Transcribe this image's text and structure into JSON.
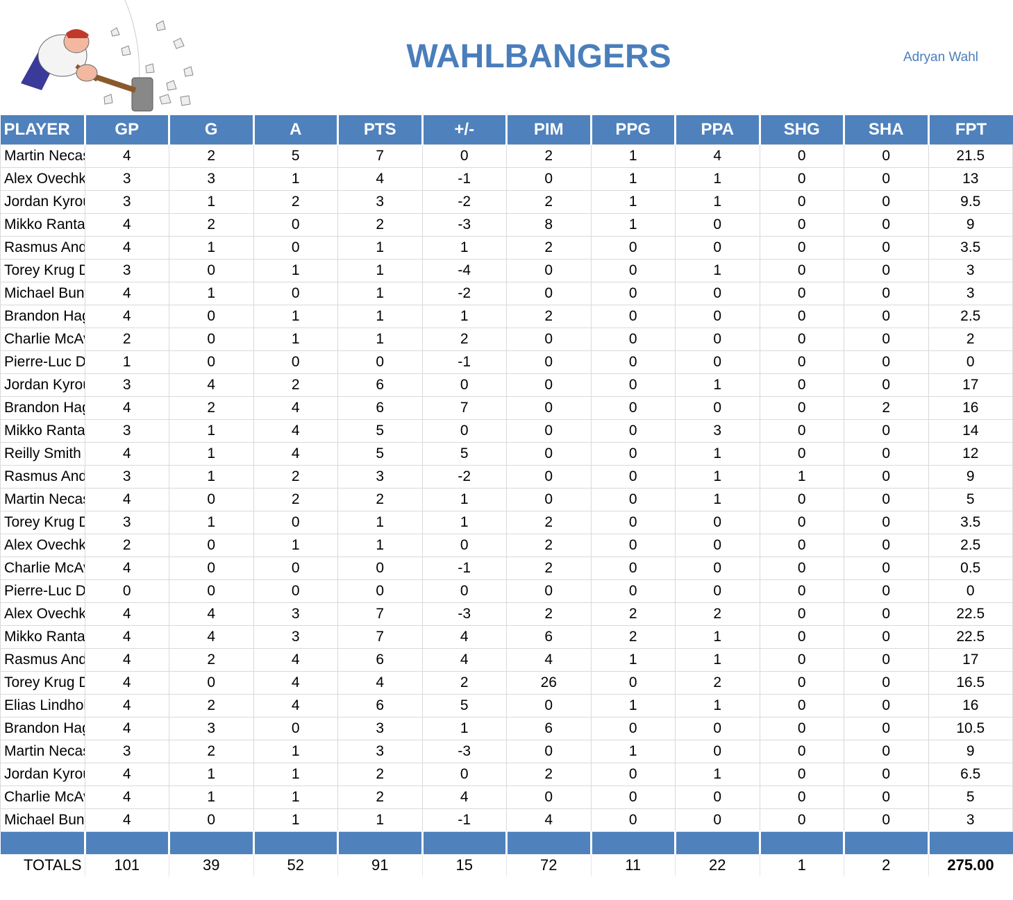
{
  "header": {
    "title": "WAHLBANGERS",
    "owner": "Adryan Wahl"
  },
  "table": {
    "columns": [
      "PLAYER",
      "GP",
      "G",
      "A",
      "PTS",
      "+/-",
      "PIM",
      "PPG",
      "PPA",
      "SHG",
      "SHA",
      "FPT"
    ],
    "rows": [
      [
        "Martin Necas C | CAR",
        4,
        2,
        5,
        7,
        0,
        2,
        1,
        4,
        0,
        0,
        21.5
      ],
      [
        "Alex Ovechkin LW | WAS",
        3,
        3,
        1,
        4,
        -1,
        0,
        1,
        1,
        0,
        0,
        13
      ],
      [
        "Jordan Kyrou C | STL",
        3,
        1,
        2,
        3,
        -2,
        2,
        1,
        1,
        0,
        0,
        9.5
      ],
      [
        "Mikko Rantanen RW | COL",
        4,
        2,
        0,
        2,
        -3,
        8,
        1,
        0,
        0,
        0,
        9
      ],
      [
        "Rasmus Andersson D | CGY",
        4,
        1,
        0,
        1,
        1,
        2,
        0,
        0,
        0,
        0,
        3.5
      ],
      [
        "Torey Krug D | STL",
        3,
        0,
        1,
        1,
        -4,
        0,
        0,
        1,
        0,
        0,
        3
      ],
      [
        "Michael Bunting LW | TOR",
        4,
        1,
        0,
        1,
        -2,
        0,
        0,
        0,
        0,
        0,
        3
      ],
      [
        "Brandon Hagel LW | TB",
        4,
        0,
        1,
        1,
        1,
        2,
        0,
        0,
        0,
        0,
        2.5
      ],
      [
        "Charlie McAvoy D | BOS",
        2,
        0,
        1,
        1,
        2,
        0,
        0,
        0,
        0,
        0,
        2
      ],
      [
        "Pierre-Luc Dubois C | WPG",
        1,
        0,
        0,
        0,
        -1,
        0,
        0,
        0,
        0,
        0,
        0
      ],
      [
        "Jordan Kyrou C | STL",
        3,
        4,
        2,
        6,
        0,
        0,
        0,
        1,
        0,
        0,
        17
      ],
      [
        "Brandon Hagel LW | TB",
        4,
        2,
        4,
        6,
        7,
        0,
        0,
        0,
        0,
        2,
        16
      ],
      [
        "Mikko Rantanen RW | COL",
        3,
        1,
        4,
        5,
        0,
        0,
        0,
        3,
        0,
        0,
        14
      ],
      [
        "Reilly Smith RW | LV",
        4,
        1,
        4,
        5,
        5,
        0,
        0,
        1,
        0,
        0,
        12
      ],
      [
        "Rasmus Andersson D | CGY",
        3,
        1,
        2,
        3,
        -2,
        0,
        0,
        1,
        1,
        0,
        9
      ],
      [
        "Martin Necas C | CAR",
        4,
        0,
        2,
        2,
        1,
        0,
        0,
        1,
        0,
        0,
        5
      ],
      [
        "Torey Krug D | STL",
        3,
        1,
        0,
        1,
        1,
        2,
        0,
        0,
        0,
        0,
        3.5
      ],
      [
        "Alex Ovechkin LW | WAS",
        2,
        0,
        1,
        1,
        0,
        2,
        0,
        0,
        0,
        0,
        2.5
      ],
      [
        "Charlie McAvoy D | BOS",
        4,
        0,
        0,
        0,
        -1,
        2,
        0,
        0,
        0,
        0,
        0.5
      ],
      [
        "Pierre-Luc Dubois C | WPG",
        0,
        0,
        0,
        0,
        0,
        0,
        0,
        0,
        0,
        0,
        0
      ],
      [
        "Alex Ovechkin LW | WAS",
        4,
        4,
        3,
        7,
        -3,
        2,
        2,
        2,
        0,
        0,
        22.5
      ],
      [
        "Mikko Rantanen RW | COL",
        4,
        4,
        3,
        7,
        4,
        6,
        2,
        1,
        0,
        0,
        22.5
      ],
      [
        "Rasmus Andersson D | CGY",
        4,
        2,
        4,
        6,
        4,
        4,
        1,
        1,
        0,
        0,
        17
      ],
      [
        "Torey Krug D | STL",
        4,
        0,
        4,
        4,
        2,
        26,
        0,
        2,
        0,
        0,
        16.5
      ],
      [
        "Elias Lindholm C | CGY",
        4,
        2,
        4,
        6,
        5,
        0,
        1,
        1,
        0,
        0,
        16
      ],
      [
        "Brandon Hagel LW | TB",
        4,
        3,
        0,
        3,
        1,
        6,
        0,
        0,
        0,
        0,
        10.5
      ],
      [
        "Martin Necas C | CAR",
        3,
        2,
        1,
        3,
        -3,
        0,
        1,
        0,
        0,
        0,
        9
      ],
      [
        "Jordan Kyrou C | STL",
        4,
        1,
        1,
        2,
        0,
        2,
        0,
        1,
        0,
        0,
        6.5
      ],
      [
        "Charlie McAvoy D | BOS",
        4,
        1,
        1,
        2,
        4,
        0,
        0,
        0,
        0,
        0,
        5
      ],
      [
        "Michael Bunting LW | TOR",
        4,
        0,
        1,
        1,
        -1,
        4,
        0,
        0,
        0,
        0,
        3
      ]
    ],
    "totals": [
      "TOTALS",
      101,
      39,
      52,
      91,
      15,
      72,
      11,
      22,
      1,
      2,
      "275.00"
    ]
  }
}
